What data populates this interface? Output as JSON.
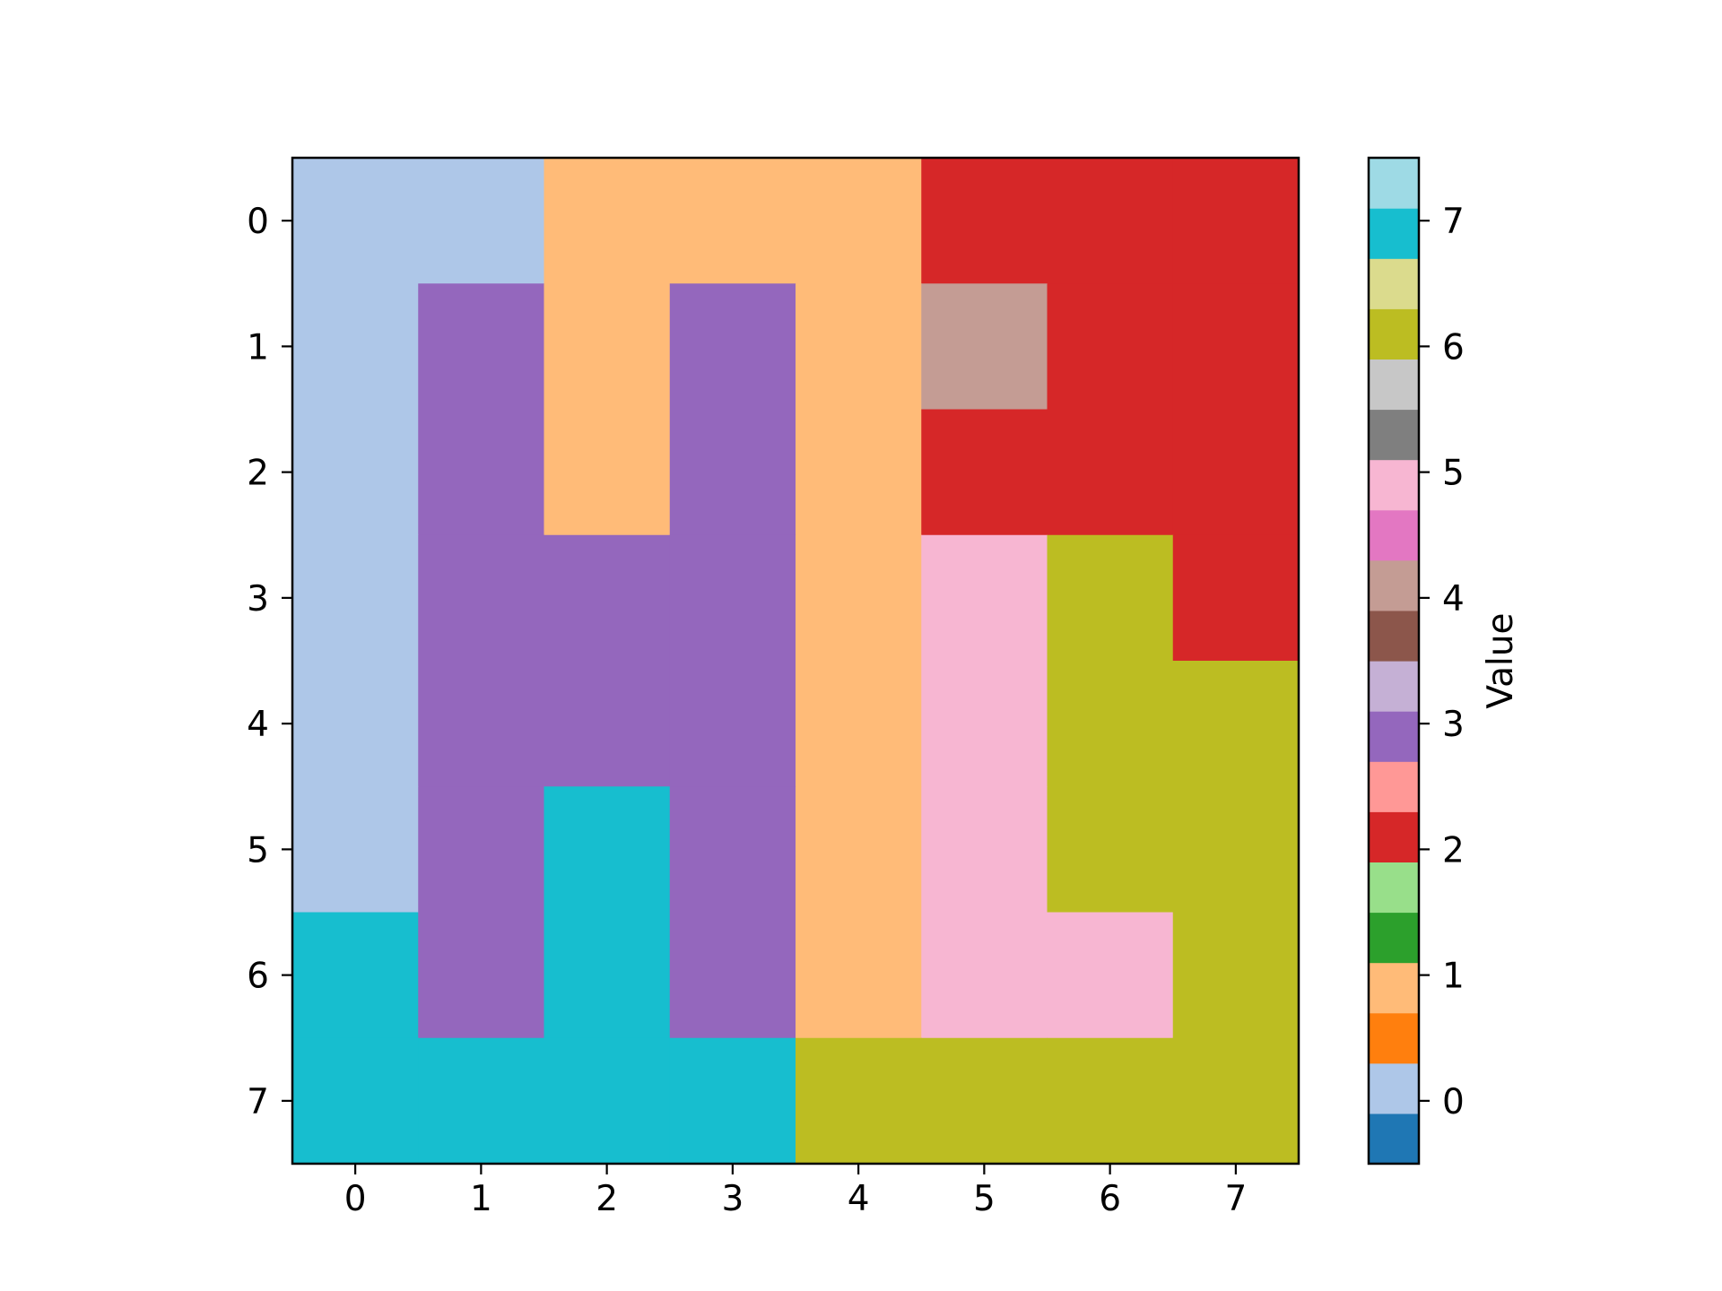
{
  "chart_data": {
    "type": "heatmap",
    "title": "",
    "xlabel": "",
    "ylabel": "",
    "x_ticks": [
      "0",
      "1",
      "2",
      "3",
      "4",
      "5",
      "6",
      "7"
    ],
    "y_ticks": [
      "0",
      "1",
      "2",
      "3",
      "4",
      "5",
      "6",
      "7"
    ],
    "matrix": [
      [
        0,
        0,
        1,
        1,
        1,
        2,
        2,
        2
      ],
      [
        0,
        3,
        1,
        3,
        1,
        4,
        2,
        2
      ],
      [
        0,
        3,
        1,
        3,
        1,
        2,
        2,
        2
      ],
      [
        0,
        3,
        3,
        3,
        1,
        5,
        6,
        2
      ],
      [
        0,
        3,
        3,
        3,
        1,
        5,
        6,
        6
      ],
      [
        0,
        3,
        7,
        3,
        1,
        5,
        6,
        6
      ],
      [
        7,
        3,
        7,
        3,
        1,
        5,
        5,
        6
      ],
      [
        7,
        7,
        7,
        7,
        6,
        6,
        6,
        6
      ]
    ],
    "value_colors": {
      "0": "#aec7e8",
      "1": "#ffbb78",
      "2": "#d62728",
      "3": "#9467bd",
      "4": "#c49c94",
      "5": "#f7b6d2",
      "6": "#bcbd22",
      "7": "#17becf"
    },
    "colorbar": {
      "label": "Value",
      "range": [
        -0.5,
        7.5
      ],
      "ticks": [
        "0",
        "1",
        "2",
        "3",
        "4",
        "5",
        "6",
        "7"
      ],
      "colors": [
        "#1f77b4",
        "#aec7e8",
        "#ff7f0e",
        "#ffbb78",
        "#2ca02c",
        "#98df8a",
        "#d62728",
        "#ff9896",
        "#9467bd",
        "#c5b0d5",
        "#8c564b",
        "#c49c94",
        "#e377c2",
        "#f7b6d2",
        "#7f7f7f",
        "#c7c7c7",
        "#bcbd22",
        "#dbdb8d",
        "#17becf",
        "#9edae5"
      ]
    }
  }
}
